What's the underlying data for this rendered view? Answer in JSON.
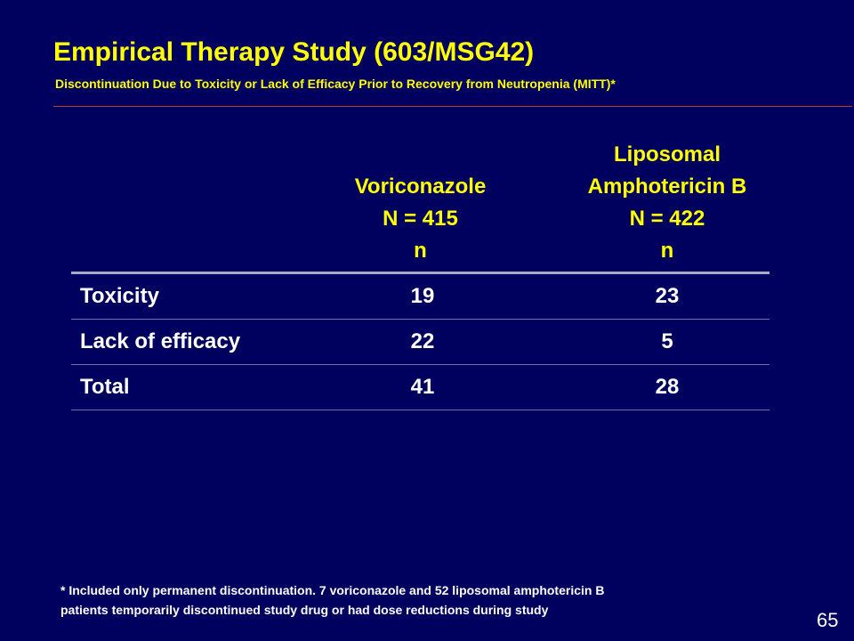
{
  "slide": {
    "title": "Empirical Therapy Study (603/MSG42)",
    "subtitle": "Discontinuation Due to Toxicity or Lack of Efficacy Prior to Recovery from Neutropenia (MITT)*",
    "page_number": "65"
  },
  "table": {
    "columns": [
      {
        "lines": [
          "Voriconazole",
          "N = 415",
          "n"
        ]
      },
      {
        "lines": [
          "Liposomal",
          "Amphotericin B",
          "N = 422",
          "n"
        ]
      }
    ],
    "rows": [
      {
        "label": "Toxicity",
        "values": [
          "19",
          "23"
        ]
      },
      {
        "label": "Lack of efficacy",
        "values": [
          "22",
          "5"
        ]
      },
      {
        "label": "Total",
        "values": [
          "41",
          "28"
        ]
      }
    ]
  },
  "footnote": {
    "lines": [
      "* Included only permanent discontinuation.  7 voriconazole and 52 liposomal amphotericin B",
      "patients temporarily discontinued study drug or had dose reductions during study"
    ]
  },
  "colors": {
    "background": "#00005f",
    "title": "#ffff00",
    "text": "#ffffff",
    "rule": "#c0392b"
  }
}
